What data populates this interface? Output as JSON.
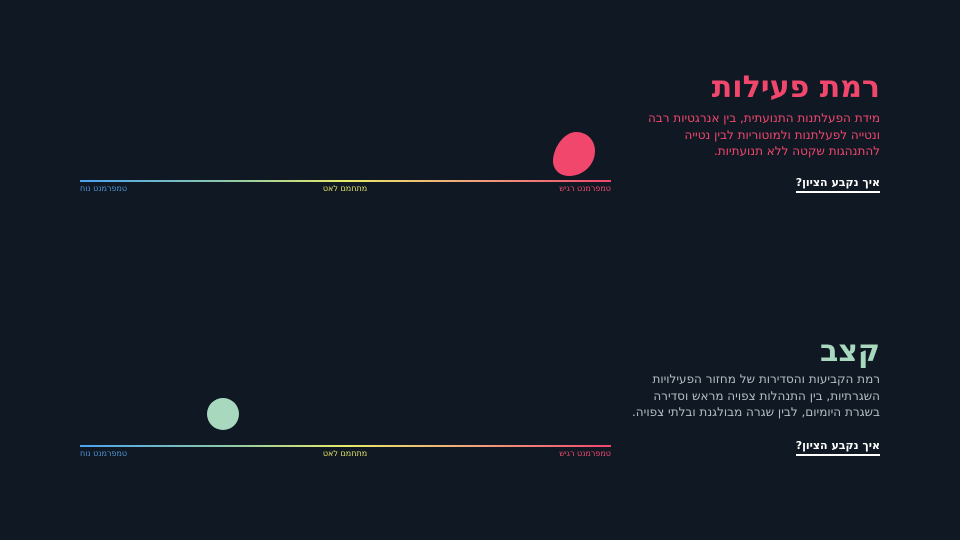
{
  "activity": {
    "title": "רמת פעילות",
    "description": "מידת הפעלתנות התנועתית, בין אנרגטיות רבה ונטייה לפעלתנות ולמוטוריות לבין נטייה להתנהגות שקטה ללא תנועתיות.",
    "link_label": "איך נקבע הציון?",
    "scale": {
      "left_label": "טמפרמנט נוח",
      "center_label": "מתחמם לאט",
      "right_label": "טמפרמנט רגיש"
    },
    "marker_level": 0.93,
    "color": "#f2476d"
  },
  "rhythm": {
    "title": "קצב",
    "description": "רמת הקביעות והסדירות של מחזור הפעילויות השגרתיות, בין התנהלות צפויה מראש וסדירה בשגרת היומיום, לבין שגרה מבולגנת ובלתי צפויה.",
    "link_label": "איך נקבע הציון?",
    "scale": {
      "left_label": "טמפרמנט נוח",
      "center_label": "מתחמם לאט",
      "right_label": "טמפרמנט רגיש"
    },
    "marker_level": 0.27,
    "color": "#a8d9bf"
  }
}
